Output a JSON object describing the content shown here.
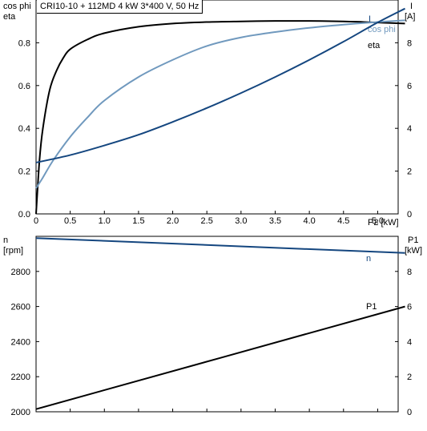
{
  "title": "CRI10-10 + 112MD   4 kW   3*400 V, 50 Hz",
  "colors": {
    "eta": "#000000",
    "cos_phi": "#7099be",
    "current": "#14467f",
    "speed": "#14467f",
    "p1": "#000000",
    "axis": "#000000",
    "grid": "#d9d9d9"
  },
  "top_chart": {
    "left_axis_label_line1": "cos phi",
    "left_axis_label_line2": "eta",
    "right_axis_label_line1": "I",
    "right_axis_label_line2": "[A]",
    "x_axis_label": "P2 [kW]"
  },
  "bottom_chart": {
    "left_axis_label_line1": "n",
    "left_axis_label_line2": "[rpm]",
    "right_axis_label_line1": "P1",
    "right_axis_label_line2": "[kW]"
  },
  "chart_data": [
    {
      "type": "line",
      "title": "CRI10-10 + 112MD   4 kW   3*400 V, 50 Hz",
      "xlabel": "P2 [kW]",
      "ylabel": "cos phi / eta",
      "y2label": "I [A]",
      "xlim": [
        0,
        5.3
      ],
      "xticks": [
        0,
        0.5,
        1.0,
        1.5,
        2.0,
        2.5,
        3.0,
        3.5,
        4.0,
        4.5,
        5.0
      ],
      "xtick_labels": [
        "0",
        "0.5",
        "1.0",
        "1.5",
        "2.0",
        "2.5",
        "3.0",
        "3.5",
        "4.0",
        "4.5",
        "5.0"
      ],
      "ylim": [
        0,
        1.0
      ],
      "yticks": [
        0,
        0.2,
        0.4,
        0.6,
        0.8
      ],
      "ytick_labels": [
        "0.0",
        "0.2",
        "0.4",
        "0.6",
        "0.8"
      ],
      "y2lim": [
        0,
        10
      ],
      "y2ticks": [
        0,
        2,
        4,
        6,
        8
      ],
      "y2tick_labels": [
        "0",
        "2",
        "4",
        "6",
        "8"
      ],
      "grid": false,
      "series": [
        {
          "name": "eta",
          "axis": "left",
          "x": [
            0,
            0.05,
            0.1,
            0.2,
            0.3,
            0.4,
            0.5,
            0.75,
            1.0,
            1.5,
            2.0,
            2.5,
            3.0,
            3.5,
            4.0,
            4.5,
            4.8,
            5.4
          ],
          "y": [
            0,
            0.25,
            0.4,
            0.58,
            0.67,
            0.73,
            0.77,
            0.815,
            0.845,
            0.875,
            0.89,
            0.897,
            0.9,
            0.902,
            0.902,
            0.9,
            0.897,
            0.89
          ]
        },
        {
          "name": "cos phi",
          "axis": "left",
          "x": [
            0,
            0.1,
            0.25,
            0.5,
            0.75,
            1.0,
            1.5,
            2.0,
            2.5,
            3.0,
            3.5,
            4.0,
            4.5,
            5.0,
            5.4
          ],
          "y": [
            0.12,
            0.17,
            0.25,
            0.36,
            0.45,
            0.53,
            0.64,
            0.72,
            0.785,
            0.825,
            0.85,
            0.87,
            0.885,
            0.897,
            0.905
          ]
        },
        {
          "name": "I",
          "axis": "right",
          "x": [
            0,
            0.5,
            1.0,
            1.5,
            2.0,
            2.5,
            3.0,
            3.5,
            4.0,
            4.5,
            5.0,
            5.4
          ],
          "y": [
            2.4,
            2.75,
            3.2,
            3.7,
            4.3,
            4.95,
            5.65,
            6.4,
            7.2,
            8.05,
            8.95,
            9.6
          ]
        }
      ]
    },
    {
      "type": "line",
      "title": "",
      "xlabel": "P2 [kW]",
      "ylabel": "n [rpm]",
      "y2label": "P1 [kW]",
      "xlim": [
        0,
        5.3
      ],
      "ylim": [
        2000,
        3000
      ],
      "yticks": [
        2000,
        2200,
        2400,
        2600,
        2800
      ],
      "ytick_labels": [
        "2000",
        "2200",
        "2400",
        "2600",
        "2800"
      ],
      "y2lim": [
        0,
        10
      ],
      "y2ticks": [
        0,
        2,
        4,
        6,
        8
      ],
      "y2tick_labels": [
        "0",
        "2",
        "4",
        "6",
        "8"
      ],
      "grid": false,
      "series": [
        {
          "name": "n",
          "axis": "left",
          "x": [
            0,
            5.4
          ],
          "y": [
            2990,
            2905
          ]
        },
        {
          "name": "P1",
          "axis": "right",
          "x": [
            0,
            5.4
          ],
          "y": [
            0.15,
            6.0
          ]
        }
      ]
    }
  ]
}
